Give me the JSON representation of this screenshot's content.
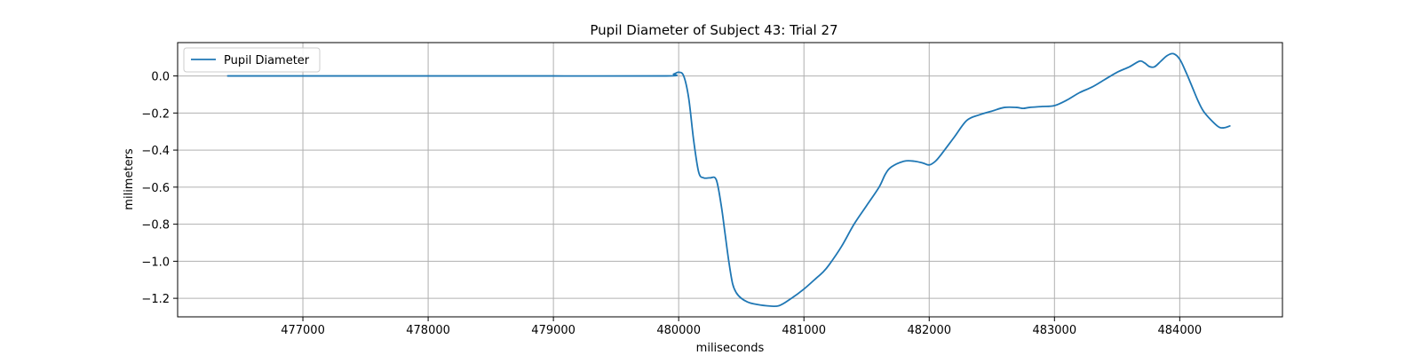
{
  "chart_data": {
    "type": "line",
    "title": "Pupil Diameter of Subject 43: Trial 27",
    "xlabel": "miliseconds",
    "ylabel": "milimeters",
    "xlim": [
      476000,
      484820
    ],
    "ylim": [
      -1.3,
      0.18
    ],
    "xticks": [
      477000,
      478000,
      479000,
      480000,
      481000,
      482000,
      483000,
      484000
    ],
    "yticks": [
      0.0,
      -0.2,
      -0.4,
      -0.6,
      -0.8,
      -1.0,
      -1.2
    ],
    "xtick_labels": [
      "477000",
      "478000",
      "479000",
      "480000",
      "481000",
      "482000",
      "483000",
      "484000"
    ],
    "ytick_labels": [
      "0.0",
      "−0.2",
      "−0.4",
      "−0.6",
      "−0.8",
      "−1.0",
      "−1.2"
    ],
    "grid": true,
    "legend": {
      "position": "upper-left",
      "entries": [
        "Pupil Diameter"
      ]
    },
    "series": [
      {
        "name": "Pupil Diameter",
        "color": "#1f77b4",
        "x": [
          476400,
          477000,
          478000,
          479000,
          479900,
          479960,
          480000,
          480040,
          480080,
          480120,
          480160,
          480200,
          480250,
          480300,
          480340,
          480370,
          480400,
          480430,
          480460,
          480500,
          480550,
          480600,
          480700,
          480800,
          480900,
          481000,
          481100,
          481150,
          481200,
          481300,
          481400,
          481500,
          481600,
          481650,
          481700,
          481800,
          481880,
          481950,
          482000,
          482050,
          482100,
          482200,
          482300,
          482400,
          482500,
          482600,
          482700,
          482750,
          482800,
          482900,
          483000,
          483100,
          483200,
          483300,
          483400,
          483500,
          483600,
          483680,
          483720,
          483760,
          483800,
          483850,
          483900,
          483950,
          484000,
          484050,
          484100,
          484150,
          484200,
          484300,
          484350,
          484400
        ],
        "y": [
          0.0,
          0.0,
          0.0,
          0.0,
          0.0,
          0.01,
          0.02,
          0.0,
          -0.12,
          -0.35,
          -0.52,
          -0.55,
          -0.55,
          -0.56,
          -0.7,
          -0.85,
          -1.0,
          -1.12,
          -1.17,
          -1.2,
          -1.22,
          -1.23,
          -1.24,
          -1.24,
          -1.2,
          -1.15,
          -1.09,
          -1.06,
          -1.02,
          -0.92,
          -0.8,
          -0.7,
          -0.6,
          -0.53,
          -0.49,
          -0.46,
          -0.46,
          -0.47,
          -0.48,
          -0.46,
          -0.42,
          -0.33,
          -0.24,
          -0.21,
          -0.19,
          -0.17,
          -0.17,
          -0.175,
          -0.17,
          -0.165,
          -0.16,
          -0.13,
          -0.09,
          -0.06,
          -0.02,
          0.02,
          0.05,
          0.08,
          0.07,
          0.05,
          0.05,
          0.08,
          0.11,
          0.12,
          0.09,
          0.02,
          -0.06,
          -0.14,
          -0.2,
          -0.27,
          -0.28,
          -0.27
        ]
      }
    ]
  }
}
